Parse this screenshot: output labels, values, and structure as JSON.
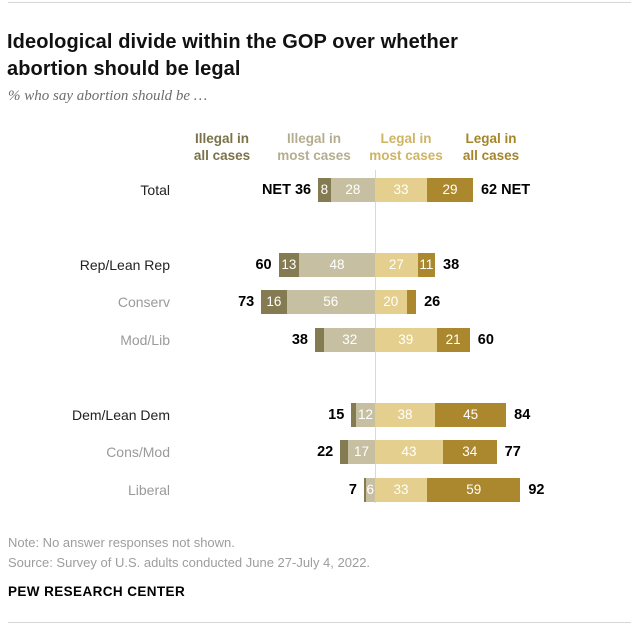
{
  "page": {
    "note": "Note: No answer responses not shown.",
    "source": "Source: Survey of U.S. adults conducted June 27-July 4, 2022.",
    "footer": "PEW RESEARCH CENTER"
  },
  "chart_data": {
    "type": "bar",
    "variant": "horizontal_diverging_stacked",
    "title_line1": "Ideological divide within the GOP over whether",
    "title_line2": "abortion should be legal",
    "subtitle": "% who say abortion should be …",
    "unit": "%",
    "legend_position": "top",
    "series": [
      {
        "key": "illegal-all",
        "name": "Illegal in all cases",
        "header_line1": "Illegal in",
        "header_line2": "all cases",
        "color": "#847b52",
        "header_color": "#7b724a"
      },
      {
        "key": "illegal-most",
        "name": "Illegal in most cases",
        "header_line1": "Illegal in",
        "header_line2": "most cases",
        "color": "#c6bfa2",
        "header_color": "#b5ad90"
      },
      {
        "key": "legal-most",
        "name": "Legal in most cases",
        "header_line1": "Legal in",
        "header_line2": "most cases",
        "color": "#e4cf8e",
        "header_color": "#cfb464"
      },
      {
        "key": "legal-all",
        "name": "Legal in all cases",
        "header_line1": "Legal in",
        "header_line2": "all cases",
        "color": "#ab882e",
        "header_color": "#a5852c"
      }
    ],
    "rows": [
      {
        "label": "Total",
        "style": "main",
        "net_left": "NET 36",
        "net_right": "62 NET",
        "values": [
          8,
          28,
          33,
          29
        ],
        "value_labels": [
          "8",
          "28",
          "33",
          "29"
        ]
      },
      {
        "label": "Rep/Lean Rep",
        "style": "main",
        "net_left": "60",
        "net_right": "38",
        "values": [
          13,
          48,
          27,
          11
        ],
        "value_labels": [
          "13",
          "48",
          "27",
          "11"
        ]
      },
      {
        "label": "Conserv",
        "style": "sub",
        "net_left": "73",
        "net_right": "26",
        "values": [
          16,
          56,
          20,
          6
        ],
        "value_labels": [
          "16",
          "56",
          "20",
          ""
        ]
      },
      {
        "label": "Mod/Lib",
        "style": "sub",
        "net_left": "38",
        "net_right": "60",
        "values": [
          6,
          32,
          39,
          21
        ],
        "value_labels": [
          "",
          "32",
          "39",
          "21"
        ]
      },
      {
        "label": "Dem/Lean Dem",
        "style": "main",
        "net_left": "15",
        "net_right": "84",
        "values": [
          3,
          12,
          38,
          45
        ],
        "value_labels": [
          "",
          "12",
          "38",
          "45"
        ]
      },
      {
        "label": "Cons/Mod",
        "style": "sub",
        "net_left": "22",
        "net_right": "77",
        "values": [
          5,
          17,
          43,
          34
        ],
        "value_labels": [
          "",
          "17",
          "43",
          "34"
        ]
      },
      {
        "label": "Liberal",
        "style": "sub",
        "net_left": "7",
        "net_right": "92",
        "values": [
          1,
          6,
          33,
          59
        ],
        "value_labels": [
          "",
          "6",
          "33",
          "59"
        ]
      }
    ]
  }
}
